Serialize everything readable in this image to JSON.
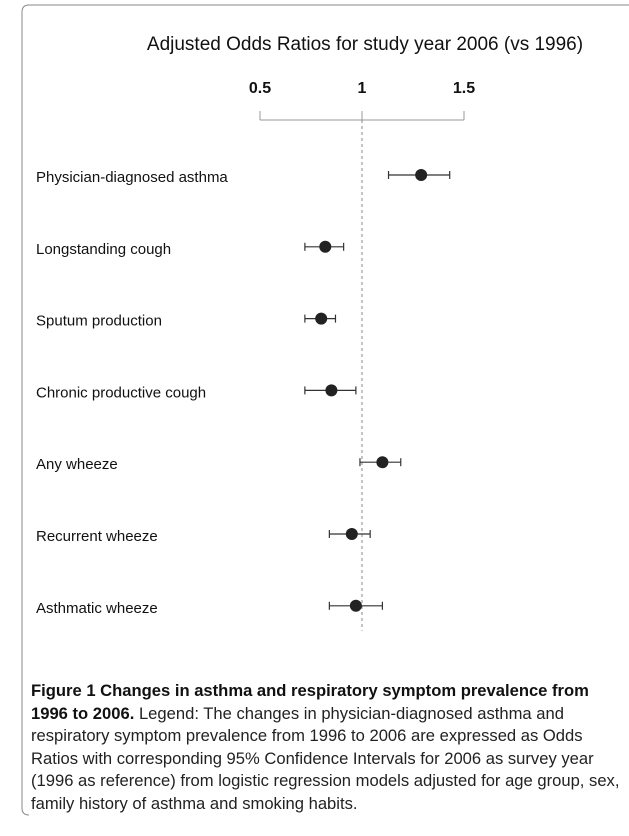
{
  "chart_data": {
    "type": "forest",
    "title": "Adjusted Odds Ratios for study year 2006 (vs 1996)",
    "categories": [
      "Physician-diagnosed asthma",
      "Longstanding cough",
      "Sputum production",
      "Chronic productive cough",
      "Any wheeze",
      "Recurrent wheeze",
      "Asthmatic wheeze"
    ],
    "values": [
      1.29,
      0.82,
      0.8,
      0.85,
      1.1,
      0.95,
      0.97
    ],
    "lower": [
      1.13,
      0.72,
      0.72,
      0.72,
      0.99,
      0.84,
      0.84
    ],
    "upper": [
      1.43,
      0.91,
      0.87,
      0.97,
      1.19,
      1.04,
      1.1
    ],
    "color": "#222222",
    "xlim": [
      0.5,
      1.5
    ],
    "xticks": [
      0.5,
      1,
      1.5
    ],
    "reference": 1
  },
  "caption": {
    "label": "Figure 1 Changes in asthma and respiratory symptom prevalence from 1996 to 2006.",
    "text": "Legend: The changes in physician-diagnosed asthma and respiratory symptom prevalence from 1996 to 2006 are expressed as Odds Ratios with corresponding 95% Confidence Intervals for 2006 as survey year (1996 as reference) from logistic regression models adjusted for age group, sex, family history of asthma and smoking habits."
  }
}
